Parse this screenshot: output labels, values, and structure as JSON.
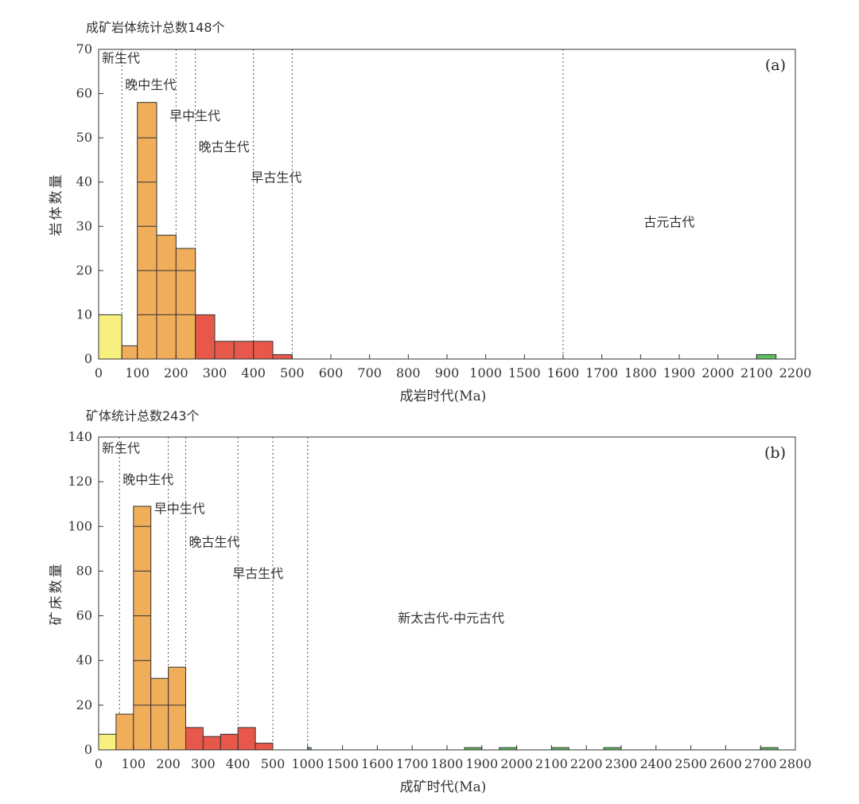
{
  "chart_data": [
    {
      "type": "bar",
      "header": "成矿岩体统计总数148个",
      "panel_label": "(a)",
      "xlabel": "成岩时代(Ma)",
      "ylabel": "岩体数量",
      "ylim": [
        0,
        70
      ],
      "yticks": [
        0,
        10,
        20,
        30,
        40,
        50,
        60,
        70
      ],
      "xticks": [
        "0",
        "100",
        "200",
        "300",
        "400",
        "500",
        "600",
        "700",
        "800",
        "900",
        "1000",
        "1500",
        "1600",
        "1700",
        "1800",
        "1900",
        "2000",
        "2100",
        "2200"
      ],
      "dividers": [
        "60",
        "200",
        "250",
        "400",
        "500",
        "1600"
      ],
      "eras": [
        {
          "label": "新生代",
          "x": "0",
          "y": 67
        },
        {
          "label": "晚中生代",
          "x": "60",
          "y": 61
        },
        {
          "label": "早中生代",
          "x": "175",
          "y": 54
        },
        {
          "label": "晚古生代",
          "x": "250",
          "y": 47
        },
        {
          "label": "早古生代",
          "x": "385",
          "y": 40
        },
        {
          "label": "古元古代",
          "x": "1800",
          "y": 30
        }
      ],
      "bars": [
        {
          "start": "0",
          "end": "60",
          "value": 10,
          "color": "#f7f07f"
        },
        {
          "start": "60",
          "end": "100",
          "value": 3,
          "color": "#f0ad5a"
        },
        {
          "start": "100",
          "end": "150",
          "value": 58,
          "color": "#f0ad5a"
        },
        {
          "start": "150",
          "end": "200",
          "value": 28,
          "color": "#f0ad5a"
        },
        {
          "start": "200",
          "end": "250",
          "value": 25,
          "color": "#f0ad5a"
        },
        {
          "start": "250",
          "end": "300",
          "value": 10,
          "color": "#e8584a"
        },
        {
          "start": "300",
          "end": "350",
          "value": 4,
          "color": "#e8584a"
        },
        {
          "start": "350",
          "end": "400",
          "value": 4,
          "color": "#e8584a"
        },
        {
          "start": "400",
          "end": "450",
          "value": 4,
          "color": "#e8584a"
        },
        {
          "start": "450",
          "end": "500",
          "value": 1,
          "color": "#e8584a"
        },
        {
          "start": "2100",
          "end": "2150",
          "value": 1,
          "color": "#5fbf60"
        }
      ],
      "segment_step": 10
    },
    {
      "type": "bar",
      "header": "矿体统计总数243个",
      "panel_label": "(b)",
      "xlabel": "成矿时代(Ma)",
      "ylabel": "矿床数量",
      "ylim": [
        0,
        140
      ],
      "yticks": [
        0,
        20,
        40,
        60,
        80,
        100,
        120,
        140
      ],
      "xticks": [
        "0",
        "100",
        "200",
        "300",
        "400",
        "500",
        "1000",
        "1500",
        "1600",
        "1700",
        "1800",
        "1900",
        "2000",
        "2100",
        "2200",
        "2300",
        "2400",
        "2500",
        "2600",
        "2700",
        "2800"
      ],
      "dividers": [
        "60",
        "200",
        "250",
        "400",
        "500",
        "1000"
      ],
      "eras": [
        {
          "label": "新生代",
          "x": "0",
          "y": 133
        },
        {
          "label": "晚中生代",
          "x": "60",
          "y": 119
        },
        {
          "label": "早中生代",
          "x": "150",
          "y": 106
        },
        {
          "label": "晚古生代",
          "x": "250",
          "y": 91
        },
        {
          "label": "早古生代",
          "x": "375",
          "y": 77
        },
        {
          "label": "新太古代-中元古代",
          "x": "1650",
          "y": 57
        }
      ],
      "bars": [
        {
          "start": "0",
          "end": "50",
          "value": 7,
          "color": "#f7f07f"
        },
        {
          "start": "50",
          "end": "100",
          "value": 16,
          "color": "#f0ad5a"
        },
        {
          "start": "100",
          "end": "150",
          "value": 109,
          "color": "#f0ad5a"
        },
        {
          "start": "150",
          "end": "200",
          "value": 32,
          "color": "#f0ad5a"
        },
        {
          "start": "200",
          "end": "250",
          "value": 37,
          "color": "#f0ad5a"
        },
        {
          "start": "250",
          "end": "300",
          "value": 10,
          "color": "#e8584a"
        },
        {
          "start": "300",
          "end": "350",
          "value": 6,
          "color": "#e8584a"
        },
        {
          "start": "350",
          "end": "400",
          "value": 7,
          "color": "#e8584a"
        },
        {
          "start": "400",
          "end": "450",
          "value": 10,
          "color": "#e8584a"
        },
        {
          "start": "450",
          "end": "500",
          "value": 3,
          "color": "#e8584a"
        },
        {
          "start": "1000",
          "end": "1050",
          "value": 1,
          "color": "#5fbf60"
        },
        {
          "start": "1850",
          "end": "1900",
          "value": 1,
          "color": "#5fbf60"
        },
        {
          "start": "1950",
          "end": "2000",
          "value": 1,
          "color": "#5fbf60"
        },
        {
          "start": "2100",
          "end": "2150",
          "value": 1,
          "color": "#5fbf60"
        },
        {
          "start": "2250",
          "end": "2300",
          "value": 1,
          "color": "#5fbf60"
        },
        {
          "start": "2700",
          "end": "2750",
          "value": 1,
          "color": "#5fbf60"
        }
      ],
      "segment_step": 20
    }
  ]
}
